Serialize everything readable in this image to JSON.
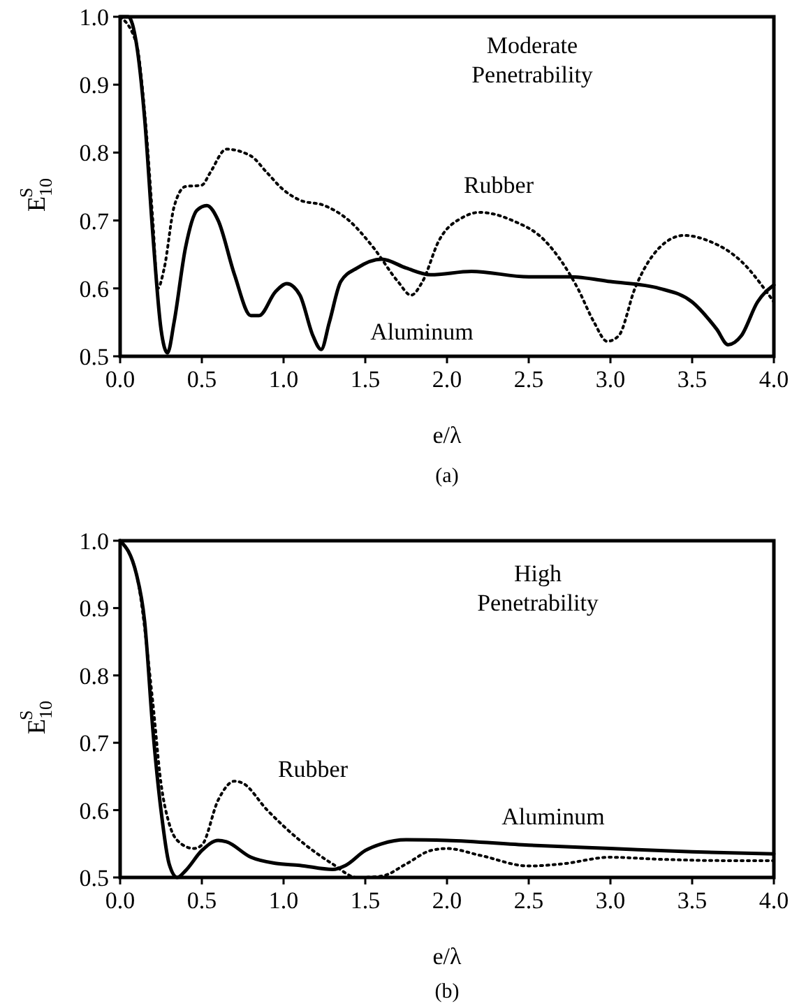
{
  "chart_data": [
    {
      "type": "line",
      "xlabel": "e/λ",
      "ylabel": "E$_{10}$$^{S}$",
      "xlim": [
        0,
        4
      ],
      "ylim": [
        0.5,
        1
      ],
      "xticks": [
        {
          "value": 0,
          "label": "0.0"
        },
        0.5,
        {
          "value": 1,
          "label": "1.0"
        },
        1.5,
        {
          "value": 2,
          "label": "2.0"
        },
        2.5,
        {
          "value": 3,
          "label": "3.0"
        },
        3.5,
        {
          "value": 4,
          "label": "4.0"
        }
      ],
      "yticks": [
        0.5,
        0.6,
        0.7,
        0.8,
        0.9,
        {
          "value": 1,
          "label": "1.0"
        }
      ],
      "grid": false,
      "legend": false,
      "annotations": [
        "Moderate Penetrability",
        "(a)"
      ],
      "series": [
        {
          "name": "Aluminum",
          "color": "#000000",
          "line_style": "solid",
          "x": [
            0,
            0.05,
            0.1,
            0.15,
            0.2,
            0.25,
            0.29,
            0.33,
            0.4,
            0.47,
            0.53,
            0.6,
            0.7,
            0.8,
            0.85,
            0.95,
            1.02,
            1.1,
            1.18,
            1.23,
            1.28,
            1.35,
            1.45,
            1.6,
            1.75,
            1.9,
            2.15,
            2.5,
            2.75,
            3,
            3.3,
            3.5,
            3.65,
            3.72,
            3.8,
            3.9,
            4
          ],
          "values": [
            1,
            1,
            0.96,
            0.85,
            0.68,
            0.54,
            0.505,
            0.55,
            0.66,
            0.715,
            0.722,
            0.7,
            0.62,
            0.56,
            0.56,
            0.595,
            0.607,
            0.59,
            0.53,
            0.51,
            0.55,
            0.61,
            0.63,
            0.643,
            0.63,
            0.62,
            0.625,
            0.617,
            0.617,
            0.61,
            0.6,
            0.58,
            0.54,
            0.517,
            0.53,
            0.58,
            0.605
          ]
        },
        {
          "name": "Rubber",
          "color": "#000000",
          "line_style": "dotted",
          "x": [
            0,
            0.1,
            0.15,
            0.2,
            0.23,
            0.27,
            0.33,
            0.4,
            0.5,
            0.55,
            0.65,
            0.8,
            0.9,
            1,
            1.1,
            1.25,
            1.4,
            1.55,
            1.7,
            1.78,
            1.85,
            1.95,
            2.1,
            2.2,
            2.4,
            2.6,
            2.8,
            2.9,
            2.98,
            3.05,
            3.15,
            3.3,
            3.45,
            3.6,
            3.8,
            4
          ],
          "values": [
            1,
            0.96,
            0.86,
            0.7,
            0.6,
            0.63,
            0.72,
            0.75,
            0.752,
            0.77,
            0.805,
            0.795,
            0.77,
            0.745,
            0.73,
            0.722,
            0.7,
            0.66,
            0.61,
            0.59,
            0.61,
            0.67,
            0.705,
            0.712,
            0.7,
            0.67,
            0.6,
            0.55,
            0.522,
            0.53,
            0.6,
            0.66,
            0.678,
            0.67,
            0.64,
            0.58
          ]
        }
      ]
    },
    {
      "type": "line",
      "xlabel": "e/λ",
      "ylabel": "E$_{10}$$^{S}$",
      "xlim": [
        0,
        4
      ],
      "ylim": [
        0.5,
        1
      ],
      "xticks": [
        {
          "value": 0,
          "label": "0.0"
        },
        0.5,
        {
          "value": 1,
          "label": "1.0"
        },
        1.5,
        {
          "value": 2,
          "label": "2.0"
        },
        2.5,
        {
          "value": 3,
          "label": "3.0"
        },
        3.5,
        {
          "value": 4,
          "label": "4.0"
        }
      ],
      "yticks": [
        0.5,
        0.6,
        0.7,
        0.8,
        0.9,
        {
          "value": 1,
          "label": "1.0"
        }
      ],
      "grid": false,
      "legend": false,
      "annotations": [
        "High Penetrability",
        "(b)"
      ],
      "series": [
        {
          "name": "Aluminum",
          "color": "#000000",
          "line_style": "solid",
          "x": [
            0,
            0.1,
            0.15,
            0.2,
            0.25,
            0.3,
            0.35,
            0.4,
            0.5,
            0.6,
            0.65,
            0.8,
            0.95,
            1.1,
            1.3,
            1.38,
            1.5,
            1.6,
            1.75,
            2,
            2.5,
            3,
            3.5,
            4
          ],
          "values": [
            1,
            0.95,
            0.88,
            0.72,
            0.6,
            0.52,
            0.5,
            0.51,
            0.54,
            0.555,
            0.553,
            0.53,
            0.521,
            0.518,
            0.512,
            0.518,
            0.54,
            0.55,
            0.556,
            0.555,
            0.548,
            0.543,
            0.538,
            0.535
          ]
        },
        {
          "name": "Rubber",
          "color": "#000000",
          "line_style": "dotted",
          "x": [
            0,
            0.1,
            0.2,
            0.25,
            0.3,
            0.35,
            0.45,
            0.5,
            0.6,
            0.7,
            0.75,
            0.9,
            1.1,
            1.3,
            1.45,
            1.6,
            1.75,
            1.9,
            2,
            2.2,
            2.5,
            2.7,
            3,
            3.3,
            3.7,
            4
          ],
          "values": [
            1,
            0.95,
            0.76,
            0.64,
            0.58,
            0.555,
            0.543,
            0.548,
            0.615,
            0.643,
            0.64,
            0.6,
            0.555,
            0.52,
            0.5,
            0.502,
            0.52,
            0.54,
            0.543,
            0.533,
            0.517,
            0.52,
            0.53,
            0.527,
            0.525,
            0.525
          ]
        }
      ]
    }
  ]
}
